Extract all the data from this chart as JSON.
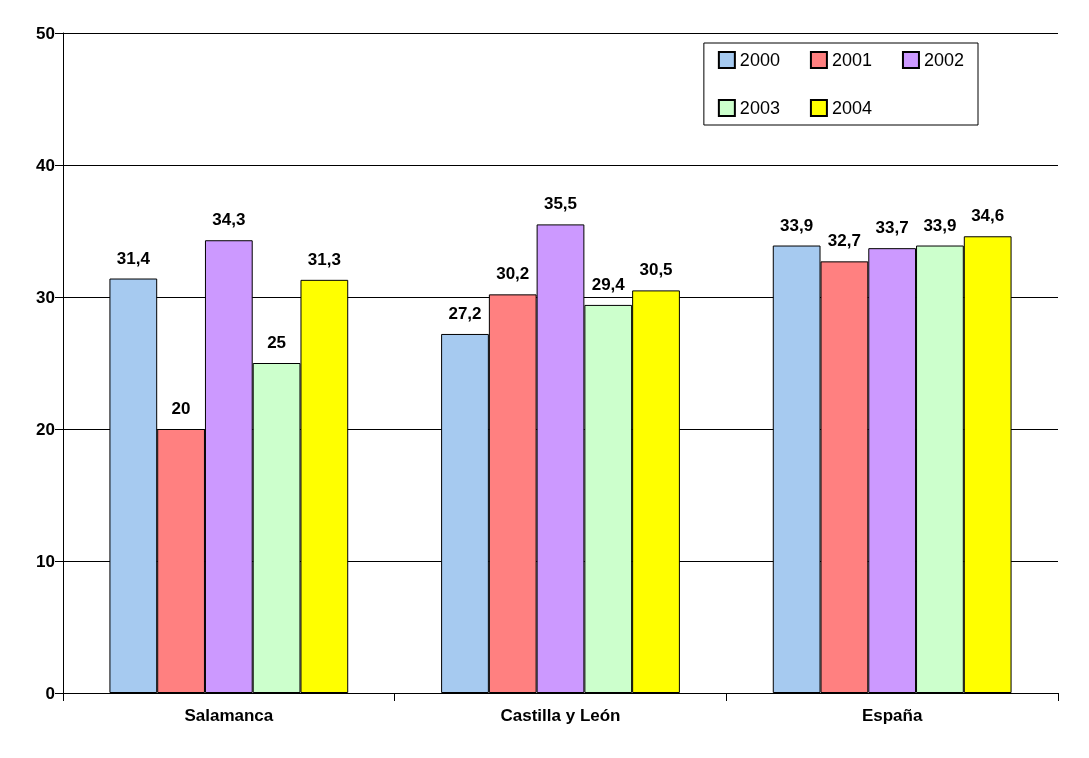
{
  "chart_data": {
    "type": "bar",
    "categories": [
      "Salamanca",
      "Castilla y León",
      "España"
    ],
    "series": [
      {
        "name": "2000",
        "color": "#a6caf0",
        "values": [
          31.4,
          27.2,
          33.9
        ],
        "value_labels": [
          "31,4",
          "27,2",
          "33,9"
        ]
      },
      {
        "name": "2001",
        "color": "#ff8080",
        "values": [
          20,
          30.2,
          32.7
        ],
        "value_labels": [
          "20",
          "30,2",
          "32,7"
        ]
      },
      {
        "name": "2002",
        "color": "#cc99ff",
        "values": [
          34.3,
          35.5,
          33.7
        ],
        "value_labels": [
          "34,3",
          "35,5",
          "33,7"
        ]
      },
      {
        "name": "2003",
        "color": "#ccffcc",
        "values": [
          25,
          29.4,
          33.9
        ],
        "value_labels": [
          "25",
          "29,4",
          "33,9"
        ]
      },
      {
        "name": "2004",
        "color": "#ffff00",
        "values": [
          31.3,
          30.5,
          34.6
        ],
        "value_labels": [
          "31,3",
          "30,5",
          "34,6"
        ]
      }
    ],
    "ylim": [
      0,
      50
    ],
    "yticks": [
      0,
      10,
      20,
      30,
      40,
      50
    ],
    "grid": "y",
    "legend": "top right"
  }
}
